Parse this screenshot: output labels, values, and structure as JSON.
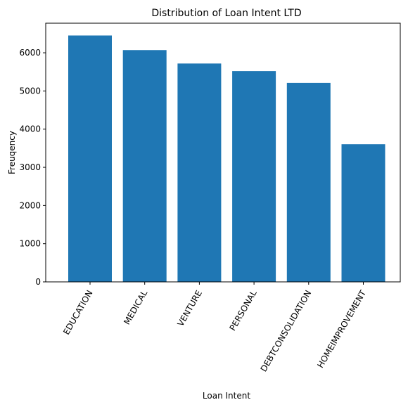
{
  "colors": {
    "bar": "#1f77b4",
    "axis": "#000000",
    "background": "#ffffff"
  },
  "chart_data": {
    "type": "bar",
    "title": "Distribution of Loan Intent LTD",
    "xlabel": "Loan Intent",
    "ylabel": "Freuqency",
    "categories": [
      "EDUCATION",
      "MEDICAL",
      "VENTURE",
      "PERSONAL",
      "DEBTCONSOLIDATION",
      "HOMEIMPROVEMENT"
    ],
    "values": [
      6453,
      6071,
      5719,
      5521,
      5212,
      3605
    ],
    "yticks": [
      0,
      1000,
      2000,
      3000,
      4000,
      5000,
      6000
    ],
    "ylim": [
      0,
      6775
    ],
    "grid": false,
    "legend": "none"
  }
}
